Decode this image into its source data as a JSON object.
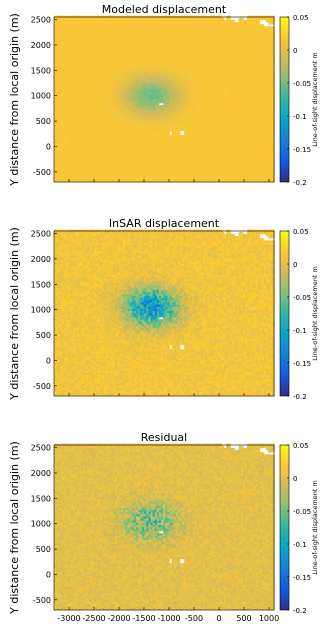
{
  "chart_data": [
    {
      "type": "heatmap",
      "title": "Modeled displacement",
      "ylabel": "Y distance from local origin (m)",
      "xlabel": "",
      "xlim": [
        -3300,
        1100
      ],
      "ylim": [
        -700,
        2550
      ],
      "yticks": [
        "2500",
        "2000",
        "1500",
        "1000",
        "500",
        "0",
        "-500"
      ],
      "ytick_values": [
        2500,
        2000,
        1500,
        1000,
        500,
        0,
        -500
      ],
      "xticks": [],
      "xtick_values": [
        -3000,
        -2500,
        -2000,
        -1500,
        -1000,
        -500,
        0,
        500,
        1000
      ],
      "grid": true,
      "colorbar": {
        "label": "Line-of-sight displacement m",
        "ticks": [
          "0.05",
          "0",
          "-0.05",
          "-0.1",
          "-0.15",
          "-0.2"
        ],
        "tick_values": [
          0.05,
          0,
          -0.05,
          -0.1,
          -0.15,
          -0.2
        ],
        "range": [
          -0.2,
          0.05
        ]
      },
      "field": {
        "background_value": 0.015,
        "anomaly_center": [
          -1350,
          1000
        ],
        "anomaly_peak": -0.07,
        "noise": 0.008
      }
    },
    {
      "type": "heatmap",
      "title": "InSAR displacement",
      "ylabel": "Y distance from local origin (m)",
      "xlabel": "",
      "xlim": [
        -3300,
        1100
      ],
      "ylim": [
        -700,
        2550
      ],
      "yticks": [
        "2500",
        "2000",
        "1500",
        "1000",
        "500",
        "0",
        "-500"
      ],
      "ytick_values": [
        2500,
        2000,
        1500,
        1000,
        500,
        0,
        -500
      ],
      "xticks": [],
      "xtick_values": [
        -3000,
        -2500,
        -2000,
        -1500,
        -1000,
        -500,
        0,
        500,
        1000
      ],
      "grid": true,
      "colorbar": {
        "label": "Line-of-sight displacement m",
        "ticks": [
          "0.05",
          "0",
          "-0.05",
          "-0.1",
          "-0.15",
          "-0.2"
        ],
        "tick_values": [
          0.05,
          0,
          -0.05,
          -0.1,
          -0.15,
          -0.2
        ],
        "range": [
          -0.2,
          0.05
        ]
      },
      "field": {
        "background_value": 0.01,
        "anomaly_center": [
          -1350,
          1050
        ],
        "anomaly_peak": -0.13,
        "noise": 0.04
      }
    },
    {
      "type": "heatmap",
      "title": "Residual",
      "ylabel": "Y distance from local origin (m)",
      "xlabel": "X distance from local origin (m)",
      "xlim": [
        -3300,
        1100
      ],
      "ylim": [
        -700,
        2550
      ],
      "yticks": [
        "2500",
        "2000",
        "1500",
        "1000",
        "500",
        "0",
        "-500"
      ],
      "ytick_values": [
        2500,
        2000,
        1500,
        1000,
        500,
        0,
        -500
      ],
      "xticks": [
        "-3000",
        "-2500",
        "-2000",
        "-1500",
        "-1000",
        "-500",
        "0",
        "500",
        "1000"
      ],
      "xtick_values": [
        -3000,
        -2500,
        -2000,
        -1500,
        -1000,
        -500,
        0,
        500,
        1000
      ],
      "grid": true,
      "colorbar": {
        "label": "Line-of-sight displacement m",
        "ticks": [
          "0.05",
          "0",
          "-0.05",
          "-0.1",
          "-0.15",
          "-0.2"
        ],
        "tick_values": [
          0.05,
          0,
          -0.05,
          -0.1,
          -0.15,
          -0.2
        ],
        "range": [
          -0.2,
          0.05
        ]
      },
      "field": {
        "background_value": 0.0,
        "anomaly_center": [
          -1350,
          1050
        ],
        "anomaly_peak": -0.06,
        "noise": 0.04
      }
    }
  ]
}
